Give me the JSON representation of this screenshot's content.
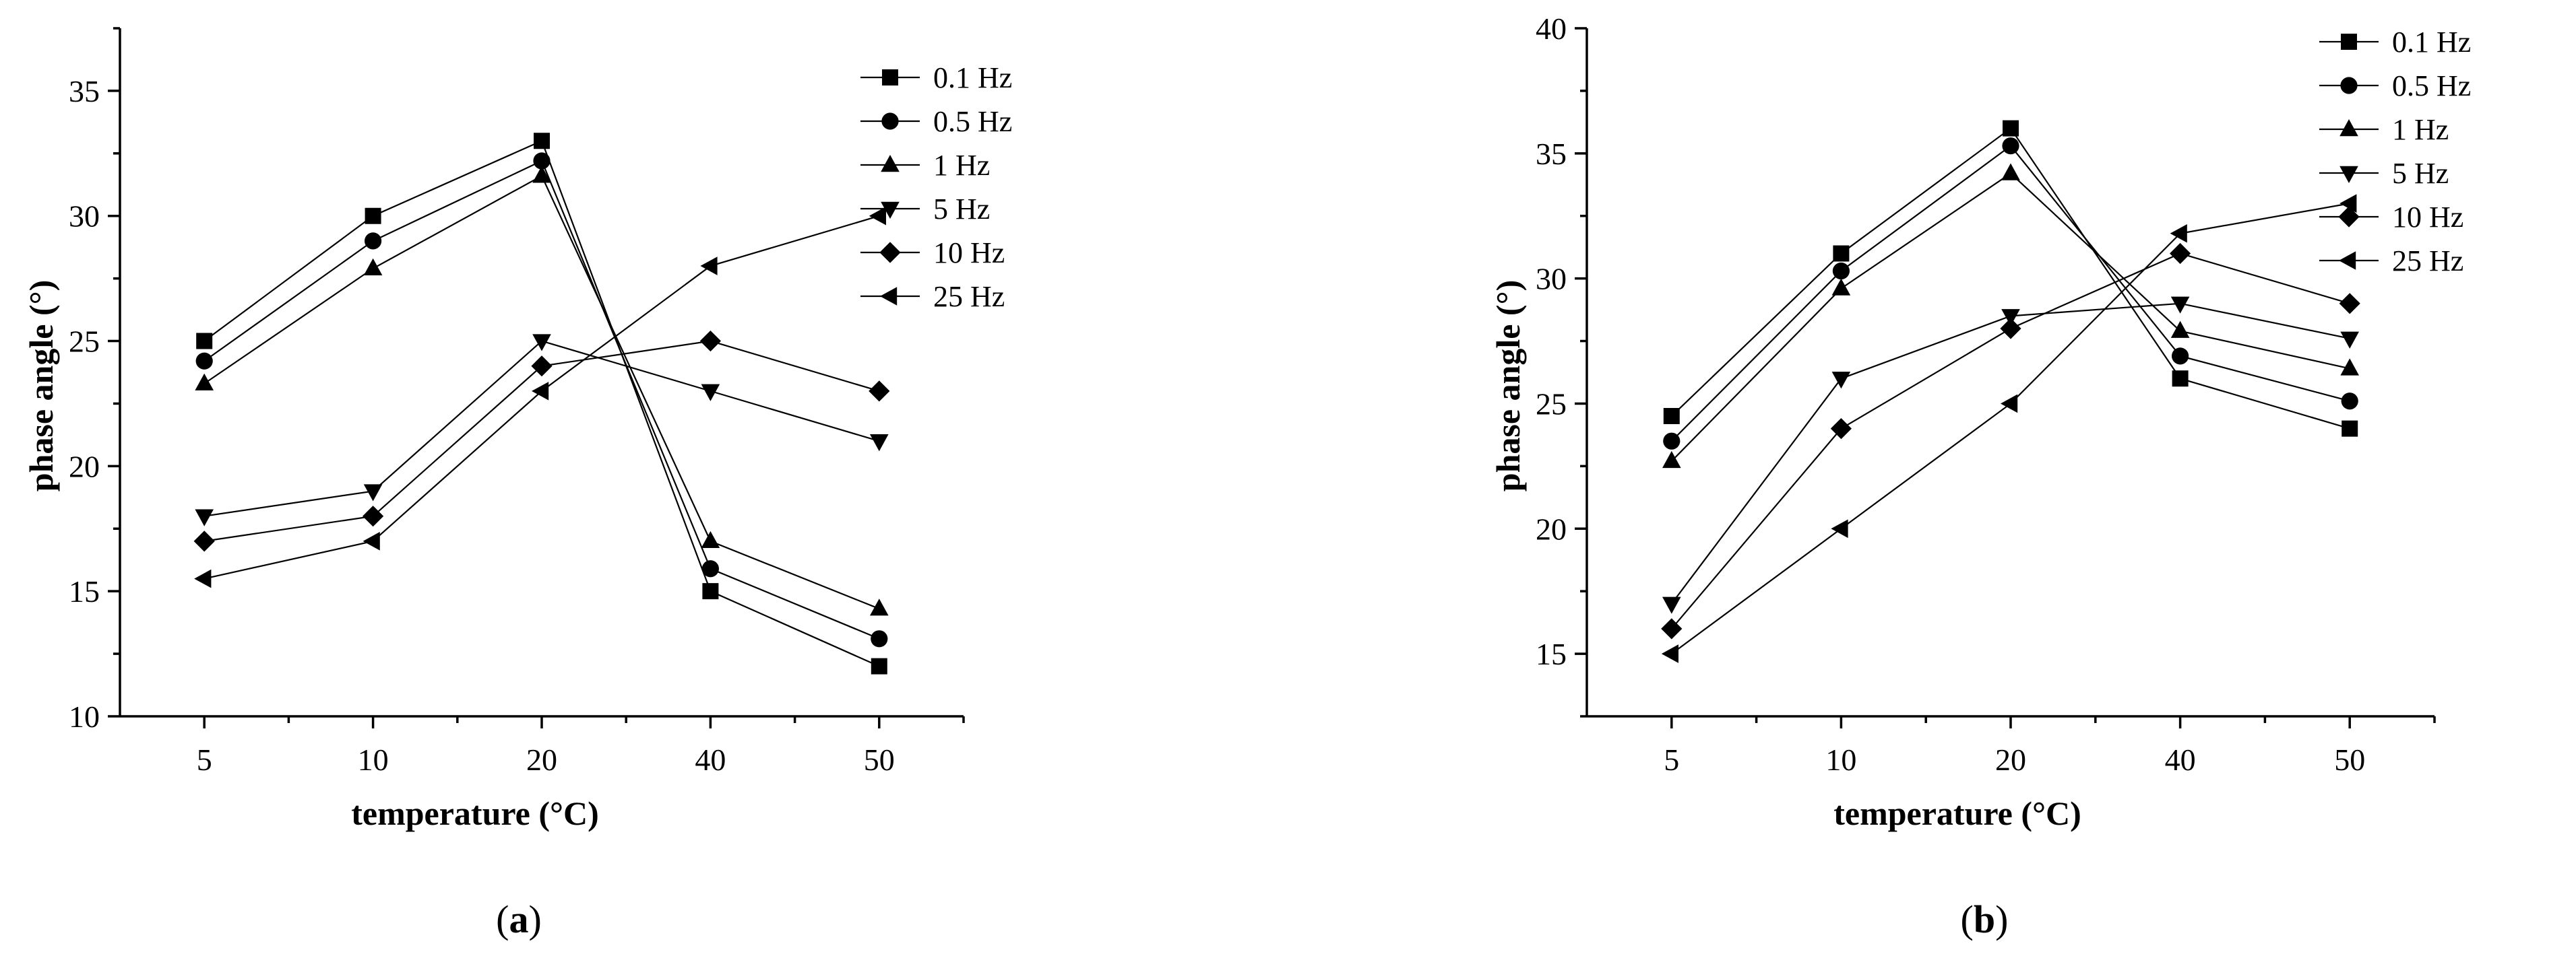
{
  "chart_data": [
    {
      "type": "line",
      "panel_label": "a",
      "xlabel": "temperature (°C)",
      "ylabel": "phase angle (°)",
      "categories": [
        "5",
        "10",
        "20",
        "40",
        "50"
      ],
      "ylim": [
        10,
        37.5
      ],
      "yticks": [
        10,
        15,
        20,
        25,
        30,
        35
      ],
      "legend_position": "top-right",
      "grid": false,
      "series": [
        {
          "name": "0.1 Hz",
          "marker": "square",
          "values": [
            25,
            30,
            33,
            15,
            12
          ]
        },
        {
          "name": "0.5 Hz",
          "marker": "circle",
          "values": [
            24.2,
            29,
            32.2,
            15.9,
            13.1
          ]
        },
        {
          "name": "1 Hz",
          "marker": "triangle-up",
          "values": [
            23.3,
            27.9,
            31.6,
            17,
            14.3
          ]
        },
        {
          "name": "5 Hz",
          "marker": "triangle-down",
          "values": [
            18,
            19,
            25,
            23,
            21
          ]
        },
        {
          "name": "10 Hz",
          "marker": "diamond",
          "values": [
            17,
            18,
            24,
            25,
            23
          ]
        },
        {
          "name": "25 Hz",
          "marker": "triangle-left",
          "values": [
            15.5,
            17,
            23,
            28,
            30
          ]
        }
      ]
    },
    {
      "type": "line",
      "panel_label": "b",
      "xlabel": "temperature (°C)",
      "ylabel": "phase angle (°)",
      "categories": [
        "5",
        "10",
        "20",
        "40",
        "50"
      ],
      "ylim": [
        12.5,
        40
      ],
      "yticks": [
        15,
        20,
        25,
        30,
        35,
        40
      ],
      "legend_position": "top-right",
      "grid": false,
      "series": [
        {
          "name": "0.1 Hz",
          "marker": "square",
          "values": [
            24.5,
            31,
            36,
            26,
            24
          ]
        },
        {
          "name": "0.5 Hz",
          "marker": "circle",
          "values": [
            23.5,
            30.3,
            35.3,
            26.9,
            25.1
          ]
        },
        {
          "name": "1 Hz",
          "marker": "triangle-up",
          "values": [
            22.7,
            29.6,
            34.2,
            27.9,
            26.4
          ]
        },
        {
          "name": "5 Hz",
          "marker": "triangle-down",
          "values": [
            17,
            26,
            28.5,
            29,
            27.6
          ]
        },
        {
          "name": "10 Hz",
          "marker": "diamond",
          "values": [
            16,
            24,
            28,
            31,
            29
          ]
        },
        {
          "name": "25 Hz",
          "marker": "triangle-left",
          "values": [
            15,
            20,
            25,
            31.8,
            33
          ]
        }
      ]
    }
  ]
}
